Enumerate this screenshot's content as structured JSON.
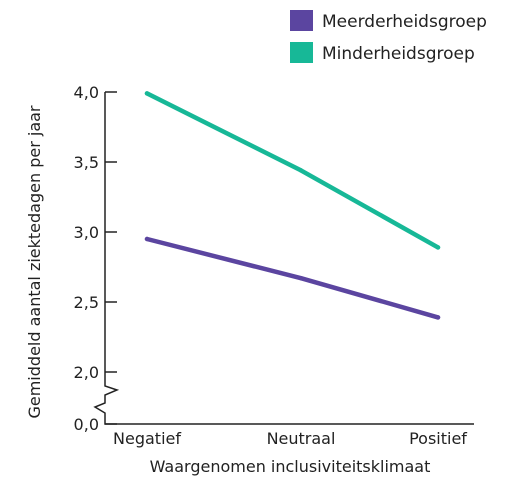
{
  "chart_data": {
    "type": "line",
    "title": "",
    "xlabel": "Waargenomen inclusiviteitsklimaat",
    "ylabel": "Gemiddeld aantal ziektedagen per jaar",
    "categories": [
      "Negatief",
      "Neutraal",
      "Positief"
    ],
    "series": [
      {
        "name": "Meerderheidsgroep",
        "color": "#5b45a0",
        "values": [
          2.95,
          2.67,
          2.39
        ]
      },
      {
        "name": "Minderheidsgroep",
        "color": "#17b897",
        "values": [
          3.99,
          3.44,
          2.89
        ]
      }
    ],
    "y_ticks": [
      {
        "value": 0.0,
        "label": "0,0"
      },
      {
        "value": 2.0,
        "label": "2,0"
      },
      {
        "value": 2.5,
        "label": "2,5"
      },
      {
        "value": 3.0,
        "label": "3,0"
      },
      {
        "value": 3.5,
        "label": "3,5"
      },
      {
        "value": 4.0,
        "label": "4,0"
      }
    ],
    "ylim": [
      2.0,
      4.0
    ],
    "y_axis_break": true,
    "grid": false,
    "legend_position": "top-right"
  }
}
